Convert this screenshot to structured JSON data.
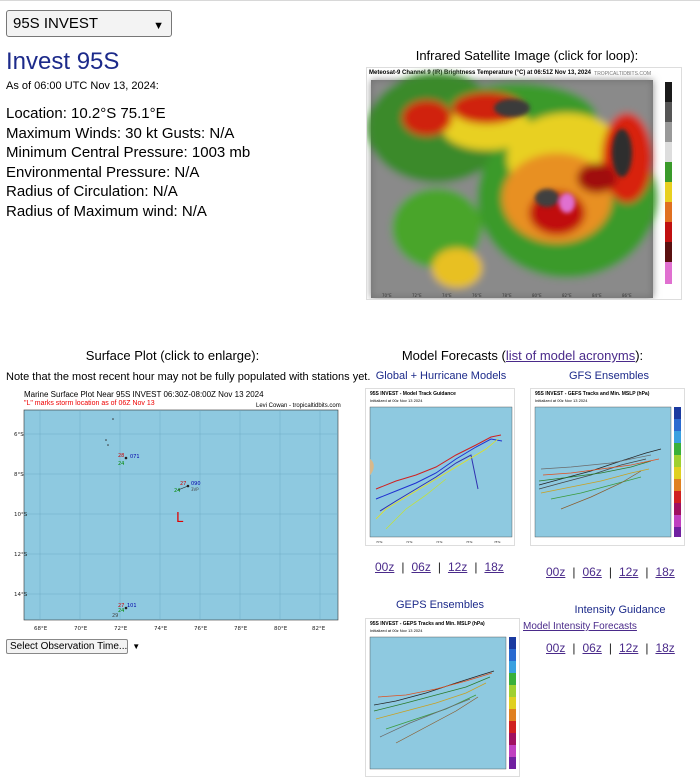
{
  "storm_select": {
    "value": "95S INVEST"
  },
  "storm": {
    "title": "Invest 95S",
    "as_of": "As of 06:00 UTC Nov 13, 2024:",
    "stats": [
      "Location: 10.2°S 75.1°E",
      "Maximum Winds: 30 kt  Gusts: N/A",
      "Minimum Central Pressure: 1003 mb",
      "Environmental Pressure: N/A",
      "Radius of Circulation: N/A",
      "Radius of Maximum wind: N/A"
    ]
  },
  "ir": {
    "caption": "Infrared Satellite Image (click for loop):",
    "header": "Meteosat-9 Channel 9 (IR) Brightness Temperature (°C) at 06:51Z Nov 13, 2024",
    "brand": "TROPICALTIDBITS.COM"
  },
  "surface": {
    "caption": "Surface Plot (click to enlarge):",
    "note": "Note that the most recent hour may not be fully populated with stations yet.",
    "title": "Marine Surface Plot Near 95S INVEST 06:30Z-08:00Z Nov 13 2024",
    "subtitle": "\"L\" marks storm location as of 06Z Nov 13",
    "credit": "Levi Cowan - tropicaltidbits.com",
    "lat_labels": [
      "6°S",
      "8°S",
      "10°S",
      "12°S",
      "14°S"
    ],
    "lon_labels": [
      "68°E",
      "70°E",
      "72°E",
      "74°E",
      "76°E",
      "78°E",
      "80°E",
      "82°E"
    ],
    "storm_marker": "L",
    "stations": [
      {
        "top": "28",
        "bottom": "24",
        "right": "071"
      },
      {
        "top": "27",
        "bottom": "24",
        "right": "090",
        "extra": "3VP"
      },
      {
        "top": "27",
        "bottom": "24",
        "right": "101",
        "extra": "29"
      }
    ],
    "obs_select": "Select Observation Time..."
  },
  "models": {
    "caption_prefix": "Model Forecasts (",
    "caption_link": "list of model acronyms",
    "caption_suffix": "):",
    "global_caption": "Global + Hurricane Models",
    "global_title": "95S INVEST - Model Track Guidance",
    "global_sub": "Initialized at 00z Nov 13 2024",
    "gfs_caption": "GFS Ensembles",
    "gfs_title": "95S INVEST - GEFS Tracks and Min. MSLP (hPa)",
    "gfs_sub": "Initialized at 00z Nov 13 2024",
    "geps_caption": "GEPS Ensembles",
    "geps_title": "95S INVEST - GEPS Tracks and Min. MSLP (hPa)",
    "geps_sub": "Initialized at 00z Nov 13 2024",
    "intensity_caption": "Intensity Guidance",
    "intensity_link": "Model Intensity Forecasts",
    "runs": [
      "00z",
      "06z",
      "12z",
      "18z"
    ]
  },
  "colors": {
    "ocean": "#8ec9e0",
    "title_blue": "#1c2a8a",
    "link_purple": "#4a2a8a",
    "alert_red": "#e00000"
  }
}
